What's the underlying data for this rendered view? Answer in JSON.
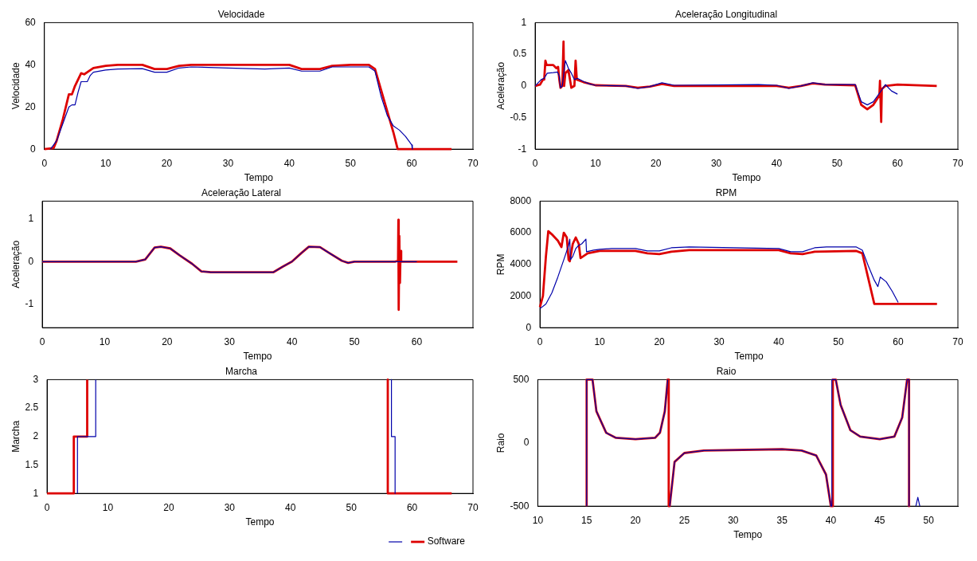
{
  "chart_data": [
    {
      "type": "line",
      "title": "Velocidade",
      "xlabel": "Tempo",
      "ylabel": "Velocidade",
      "xlim": [
        0,
        70
      ],
      "ylim": [
        0,
        60
      ],
      "xticks": [
        0,
        10,
        20,
        30,
        40,
        50,
        60,
        70
      ],
      "yticks": [
        0,
        20,
        40,
        60
      ],
      "series": [
        {
          "color": "#0000aa",
          "x": [
            1,
            2,
            3,
            4,
            4.5,
            5,
            5.5,
            6,
            6.5,
            7,
            7.5,
            8,
            10,
            12,
            16,
            18,
            20,
            22,
            24,
            30,
            36,
            40,
            42,
            45,
            47,
            50,
            53,
            54,
            55,
            56,
            57,
            58,
            59,
            60,
            60.1
          ],
          "values": [
            0,
            4,
            12,
            20,
            21,
            21,
            27,
            32,
            32,
            32,
            35,
            36.5,
            37.5,
            38,
            38.2,
            36.5,
            36.5,
            38.5,
            39,
            38.5,
            38,
            38.5,
            37,
            37,
            39,
            39,
            39,
            37,
            25,
            16,
            11,
            9,
            6,
            2,
            0
          ]
        },
        {
          "color": "#dd0000",
          "x": [
            0,
            1.5,
            2,
            3,
            4,
            4.5,
            5,
            6,
            6.5,
            7,
            8,
            10,
            12,
            16,
            18,
            20,
            22,
            24,
            40,
            42,
            45,
            47,
            50,
            53,
            54,
            55,
            56,
            57,
            57.7,
            66.5
          ],
          "values": [
            0,
            0.5,
            4,
            14,
            26,
            26,
            30,
            36,
            35.5,
            36.5,
            38.5,
            39.5,
            40,
            40,
            38,
            38,
            39.5,
            40,
            40,
            38,
            38,
            39.5,
            40,
            40,
            38,
            28,
            18,
            8,
            0,
            0
          ]
        }
      ]
    },
    {
      "type": "line",
      "title": "Aceleração Longitudinal",
      "xlabel": "Tempo",
      "ylabel": "Aceleração",
      "xlim": [
        0,
        70
      ],
      "ylim": [
        -1,
        1
      ],
      "xticks": [
        0,
        10,
        20,
        30,
        40,
        50,
        60,
        70
      ],
      "yticks": [
        -1,
        -0.5,
        0,
        0.5,
        1
      ],
      "series": [
        {
          "color": "#0000aa",
          "x": [
            0,
            1,
            1.5,
            2,
            3,
            3.7,
            4,
            4.2,
            4.5,
            5,
            5.5,
            6,
            6.5,
            7,
            8,
            9,
            10,
            15,
            17,
            19,
            21,
            23,
            37,
            40,
            42,
            44,
            46,
            48,
            53,
            54,
            55,
            56,
            57.5,
            58,
            59,
            60
          ],
          "values": [
            0,
            0.1,
            0.12,
            0.2,
            0.21,
            0.22,
            0.15,
            -0.03,
            0,
            0.4,
            0.28,
            0.2,
            0.1,
            0.12,
            0.07,
            0.03,
            0.01,
            0,
            -0.04,
            -0.01,
            0.05,
            0.01,
            0.02,
            0.01,
            -0.04,
            0,
            0.05,
            0.02,
            0.02,
            -0.25,
            -0.3,
            -0.25,
            -0.05,
            0.02,
            -0.08,
            -0.13
          ]
        },
        {
          "color": "#dd0000",
          "x": [
            0,
            0.8,
            1.3,
            1.5,
            1.7,
            1.9,
            3,
            3.5,
            3.8,
            4,
            4.2,
            4.5,
            4.7,
            4.8,
            5,
            5.5,
            6,
            6.5,
            6.7,
            6.9,
            8,
            10,
            15,
            17,
            19,
            21,
            23,
            40,
            42,
            44,
            46,
            48,
            53,
            54,
            55,
            56,
            57,
            57.1,
            57.3,
            57.4,
            58,
            60,
            66.5
          ],
          "values": [
            0,
            0.02,
            0.1,
            0.1,
            0.4,
            0.33,
            0.33,
            0.28,
            0.3,
            0.1,
            -0.03,
            0,
            0.7,
            0,
            0.2,
            0.25,
            -0.03,
            0,
            0.4,
            0.1,
            0.06,
            0.01,
            0,
            -0.03,
            -0.01,
            0.03,
            0,
            0,
            -0.03,
            0,
            0.04,
            0.02,
            0.01,
            -0.3,
            -0.37,
            -0.3,
            -0.15,
            0.08,
            -0.57,
            -0.05,
            0,
            0.02,
            0
          ]
        }
      ]
    },
    {
      "type": "line",
      "title": "Aceleração Lateral",
      "xlabel": "Tempo",
      "ylabel": "Aceleração",
      "xlim": [
        0,
        69
      ],
      "ylim": [
        -1.55,
        1.42
      ],
      "xticks": [
        0,
        10,
        20,
        30,
        40,
        50,
        60
      ],
      "yticks": [
        -1,
        0,
        1
      ],
      "series": [
        {
          "color": "#0000aa",
          "x": [
            0,
            15,
            16.5,
            18,
            19,
            20.5,
            22,
            24,
            25.5,
            27,
            37,
            38.5,
            40,
            41.5,
            42.7,
            44.5,
            46,
            48,
            49,
            50,
            60
          ],
          "values": [
            0,
            0,
            0.05,
            0.33,
            0.35,
            0.31,
            0.15,
            -0.05,
            -0.23,
            -0.25,
            -0.25,
            -0.12,
            0,
            0.2,
            0.35,
            0.34,
            0.2,
            0.02,
            -0.03,
            0,
            0
          ]
        },
        {
          "color": "#dd0000",
          "x": [
            0,
            15,
            16.5,
            18,
            19,
            20.5,
            22,
            24,
            25.5,
            27,
            37,
            38.5,
            40,
            41.5,
            42.7,
            44.5,
            46,
            48,
            49,
            50,
            56.5,
            57,
            57.05,
            57.1,
            57.2,
            57.3,
            57.4,
            57.5,
            66.5
          ],
          "values": [
            0,
            0,
            0.05,
            0.33,
            0.35,
            0.31,
            0.15,
            -0.05,
            -0.23,
            -0.25,
            -0.25,
            -0.12,
            0,
            0.2,
            0.35,
            0.34,
            0.2,
            0.02,
            -0.03,
            0,
            0,
            0.02,
            0.98,
            -1.13,
            0.6,
            -0.5,
            0.25,
            0,
            0
          ]
        }
      ]
    },
    {
      "type": "line",
      "title": "RPM",
      "xlabel": "Tempo",
      "ylabel": "RPM",
      "xlim": [
        0,
        70
      ],
      "ylim": [
        0,
        8000
      ],
      "xticks": [
        0,
        10,
        20,
        30,
        40,
        50,
        60,
        70
      ],
      "yticks": [
        0,
        2000,
        4000,
        6000,
        8000
      ],
      "series": [
        {
          "color": "#0000aa",
          "x": [
            0,
            1,
            2,
            3,
            4,
            4.8,
            5,
            5.1,
            5.5,
            6,
            6.5,
            7,
            7.7,
            7.8,
            9,
            10,
            12,
            16,
            18,
            20,
            22,
            25,
            40,
            42,
            44,
            46,
            48,
            53,
            54,
            55,
            56,
            56.6,
            57,
            58,
            59,
            60
          ],
          "values": [
            1200,
            1500,
            2200,
            3200,
            4300,
            5200,
            5600,
            4300,
            4500,
            5000,
            5200,
            5300,
            5600,
            4800,
            4900,
            4950,
            5000,
            5000,
            4850,
            4850,
            5050,
            5100,
            5000,
            4800,
            4800,
            5050,
            5100,
            5100,
            4900,
            3900,
            3000,
            2600,
            3200,
            2900,
            2300,
            1600
          ]
        },
        {
          "color": "#dd0000",
          "x": [
            0,
            0.5,
            1,
            1.4,
            2,
            3,
            3.6,
            4,
            4.5,
            4.8,
            5,
            5.5,
            6,
            6.5,
            6.8,
            8,
            10,
            16,
            18,
            20,
            22,
            25,
            40,
            42,
            44,
            46,
            53,
            54,
            56,
            66.5
          ],
          "values": [
            1300,
            2000,
            4500,
            6100,
            5900,
            5500,
            5100,
            6000,
            5700,
            4300,
            4200,
            5300,
            5700,
            5300,
            4400,
            4700,
            4850,
            4850,
            4700,
            4650,
            4800,
            4900,
            4900,
            4700,
            4650,
            4800,
            4850,
            4700,
            1500,
            1500
          ]
        }
      ]
    },
    {
      "type": "line",
      "title": "Marcha",
      "xlabel": "Tempo",
      "ylabel": "Marcha",
      "xlim": [
        0,
        70
      ],
      "ylim": [
        1,
        3
      ],
      "xticks": [
        0,
        10,
        20,
        30,
        40,
        50,
        60,
        70
      ],
      "yticks": [
        1,
        1.5,
        2,
        2.5,
        3
      ],
      "legend": "bottom right",
      "series": [
        {
          "color": "#0000aa",
          "x": [
            5,
            5,
            8,
            8,
            8.1,
            56.6,
            56.6,
            57.2,
            57.2
          ],
          "values": [
            1,
            2,
            2,
            3,
            null,
            3,
            2,
            2,
            1
          ]
        },
        {
          "name": "Software",
          "color": "#dd0000",
          "x": [
            0,
            4.4,
            4.4,
            6.6,
            6.6,
            6.7,
            56,
            56,
            66.5
          ],
          "values": [
            1,
            1,
            2,
            2,
            3,
            null,
            3,
            1,
            1
          ]
        }
      ]
    },
    {
      "type": "line",
      "title": "Raio",
      "xlabel": "Tempo",
      "ylabel": "Raio",
      "xlim": [
        10,
        53
      ],
      "ylim": [
        -500,
        500
      ],
      "xticks": [
        10,
        15,
        20,
        25,
        30,
        35,
        40,
        45,
        50
      ],
      "yticks": [
        -500,
        0,
        500
      ],
      "series": [
        {
          "color": "#0000aa",
          "x": [
            15,
            15,
            15.6,
            16,
            17,
            18,
            20,
            22,
            22.5,
            23,
            23.3,
            23.35,
            23.5,
            24,
            25,
            27,
            35,
            37,
            38.5,
            39.5,
            40,
            40.1,
            40.1,
            40.5,
            41,
            42,
            43,
            45,
            46.5,
            47.3,
            47.8,
            48,
            48,
            48.1,
            48.7,
            48.9,
            49.1
          ],
          "values": [
            -500,
            500,
            500,
            250,
            80,
            40,
            30,
            40,
            80,
            250,
            500,
            null,
            -500,
            -150,
            -80,
            -60,
            -50,
            -60,
            -100,
            -250,
            -500,
            -500,
            500,
            500,
            300,
            100,
            50,
            30,
            50,
            200,
            500,
            500,
            -500,
            null,
            -500,
            -430,
            -500
          ]
        },
        {
          "color": "#dd0000",
          "x": [
            15,
            15,
            15.6,
            16,
            17,
            18,
            20,
            22,
            22.5,
            23,
            23.3,
            23.4,
            23.4,
            23.5,
            24,
            25,
            27,
            35,
            37,
            38.5,
            39.5,
            40,
            40.2,
            40.2,
            40.5,
            41,
            42,
            43,
            45,
            46.5,
            47.3,
            47.8,
            48,
            48
          ],
          "values": [
            -500,
            500,
            500,
            250,
            80,
            40,
            30,
            40,
            80,
            250,
            500,
            500,
            -500,
            -500,
            -150,
            -80,
            -60,
            -50,
            -60,
            -100,
            -250,
            -500,
            -500,
            500,
            500,
            300,
            100,
            50,
            30,
            50,
            200,
            500,
            500,
            -500
          ]
        }
      ]
    }
  ]
}
